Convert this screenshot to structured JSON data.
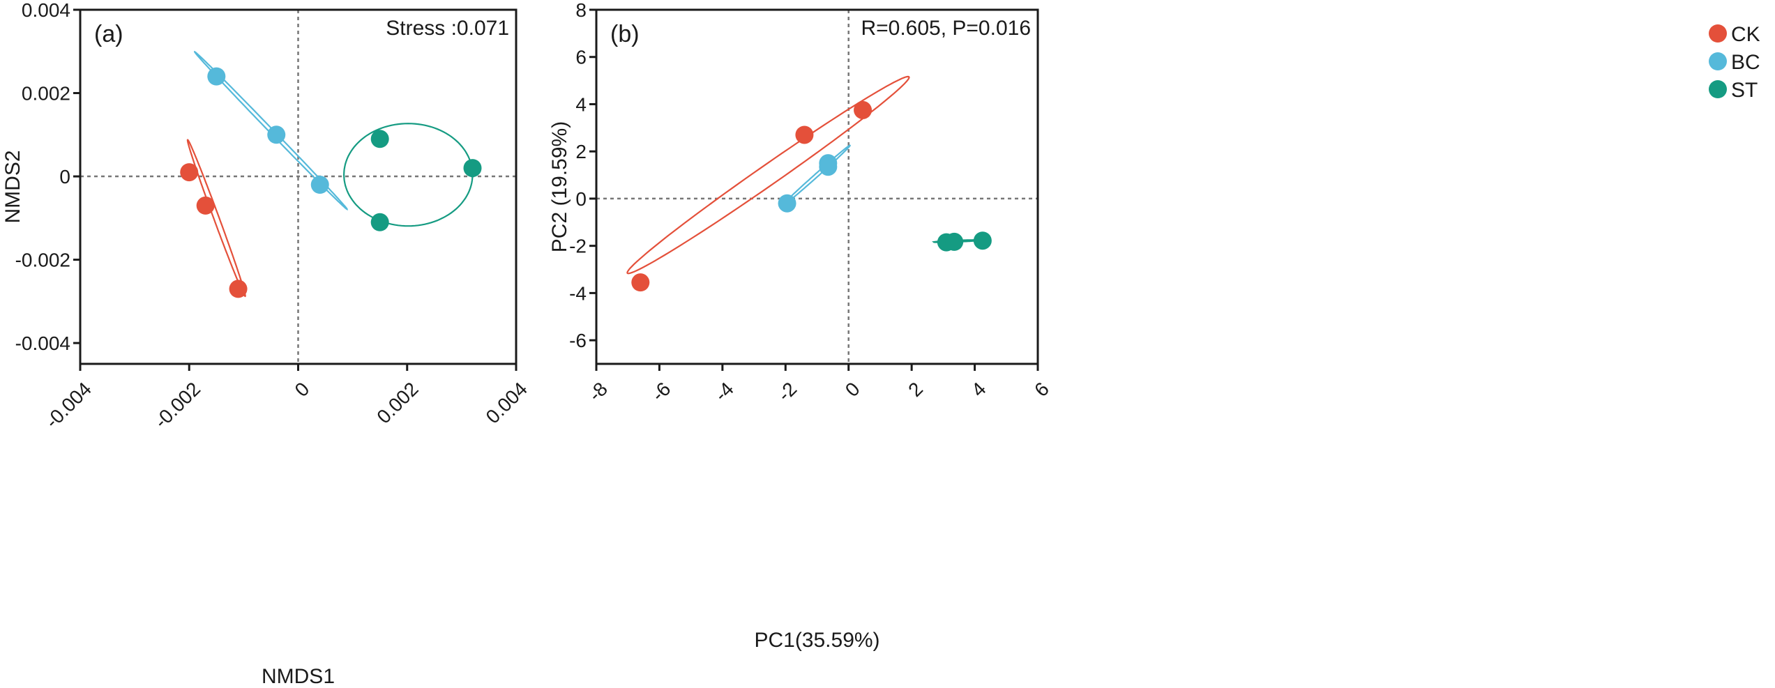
{
  "colors": {
    "CK": "#e4503a",
    "BC": "#55b9da",
    "ST": "#159b82",
    "axis": "#1a1a1a",
    "refline": "#777777"
  },
  "legend": [
    {
      "group": "CK",
      "label": "CK"
    },
    {
      "group": "BC",
      "label": "BC"
    },
    {
      "group": "ST",
      "label": "ST"
    }
  ],
  "chart_data": [
    {
      "type": "scatter",
      "panel_label": "(a)",
      "annotation": "Stress :0.071",
      "xlabel": "NMDS1",
      "ylabel": "NMDS2",
      "xlim": [
        -0.004,
        0.004
      ],
      "ylim": [
        -0.0045,
        0.004
      ],
      "xticks": [
        -0.004,
        -0.002,
        0,
        0.002,
        0.004
      ],
      "xtick_labels": [
        "-0.004",
        "-0.002",
        "0",
        "0.002",
        "0.004"
      ],
      "yticks": [
        -0.004,
        -0.002,
        0,
        0.002,
        0.004
      ],
      "ytick_labels": [
        "-0.004",
        "-0.002",
        "0",
        "0.002",
        "0.004"
      ],
      "reference_lines": {
        "x": 0,
        "y": 0
      },
      "series": [
        {
          "name": "CK",
          "points": [
            [
              -0.002,
              0.0001
            ],
            [
              -0.0017,
              -0.0007
            ],
            [
              -0.0011,
              -0.0027
            ]
          ],
          "ellipse": {
            "center": [
              -0.0015,
              -0.001
            ],
            "semi_axes": [
              0.00195,
              5e-05
            ],
            "angle_deg": -74.3
          }
        },
        {
          "name": "BC",
          "points": [
            [
              -0.0015,
              0.0024
            ],
            [
              -0.0004,
              0.001
            ],
            [
              0.0004,
              -0.0002
            ]
          ],
          "ellipse": {
            "center": [
              -0.0005,
              0.0011
            ],
            "semi_axes": [
              0.00235,
              4e-05
            ],
            "angle_deg": -53.5
          }
        },
        {
          "name": "ST",
          "points": [
            [
              0.0015,
              0.0009
            ],
            [
              0.0032,
              0.0002
            ],
            [
              0.0015,
              -0.0011
            ]
          ],
          "ellipse": {
            "center": [
              0.00202,
              4e-05
            ],
            "semi_axes": [
              0.00118,
              0.00123
            ],
            "angle_deg": 0
          }
        }
      ]
    },
    {
      "type": "scatter",
      "panel_label": "(b)",
      "annotation": "R=0.605, P=0.016",
      "xlabel": "PC1(35.59%)",
      "ylabel": "PC2 (19.59%)",
      "xlim": [
        -8,
        6
      ],
      "ylim": [
        -7,
        8
      ],
      "xticks": [
        -8,
        -6,
        -4,
        -2,
        0,
        2,
        4,
        6
      ],
      "xtick_labels": [
        "-8",
        "-6",
        "-4",
        "-2",
        "0",
        "2",
        "4",
        "6"
      ],
      "yticks": [
        -6,
        -4,
        -2,
        0,
        2,
        4,
        6,
        8
      ],
      "ytick_labels": [
        "-6",
        "-4",
        "-2",
        "0",
        "2",
        "4",
        "6",
        "8"
      ],
      "reference_lines": {
        "x": 0,
        "y": 0
      },
      "series": [
        {
          "name": "CK",
          "points": [
            [
              -6.6,
              -3.55
            ],
            [
              -1.4,
              2.7
            ],
            [
              0.45,
              3.75
            ]
          ],
          "ellipse": {
            "center": [
              -2.55,
              1.0
            ],
            "semi_axes": [
              6.1,
              0.38
            ],
            "angle_deg": 43
          }
        },
        {
          "name": "BC",
          "points": [
            [
              -1.95,
              -0.2
            ],
            [
              -0.65,
              1.5
            ],
            [
              -0.65,
              1.35
            ]
          ],
          "ellipse": {
            "center": [
              -1.05,
              0.95
            ],
            "semi_axes": [
              1.7,
              0.06
            ],
            "angle_deg": 50
          }
        },
        {
          "name": "ST",
          "points": [
            [
              3.1,
              -1.85
            ],
            [
              3.35,
              -1.83
            ],
            [
              4.25,
              -1.78
            ]
          ],
          "ellipse": {
            "center": [
              3.45,
              -1.8
            ],
            "semi_axes": [
              0.75,
              0.03
            ],
            "angle_deg": 3
          }
        }
      ]
    }
  ]
}
